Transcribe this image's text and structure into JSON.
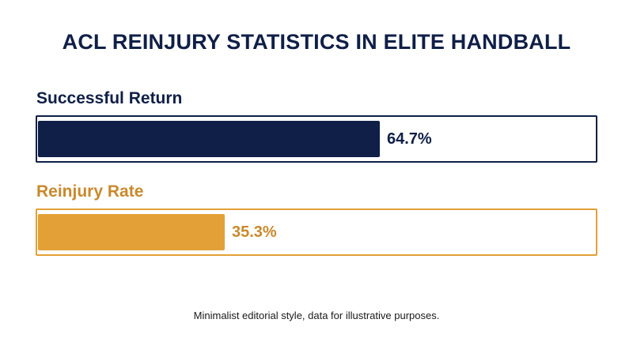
{
  "colors": {
    "title": "#0f1f47",
    "successful_return": "#0f1f47",
    "reinjury_rate": "#e3a036",
    "reinjury_label": "#c9892c"
  },
  "footnote": "Minimalist editorial style, data for illustrative purposes.",
  "chart_data": {
    "type": "bar",
    "orientation": "horizontal",
    "title": "ACL REINJURY STATISTICS IN ELITE HANDBALL",
    "xlabel": "",
    "ylabel": "",
    "xlim": [
      0,
      100
    ],
    "unit": "%",
    "grid": false,
    "categories": [
      "Successful Return",
      "Reinjury Rate"
    ],
    "values": [
      64.7,
      35.3
    ],
    "value_labels": [
      "64.7%",
      "35.3%"
    ]
  }
}
